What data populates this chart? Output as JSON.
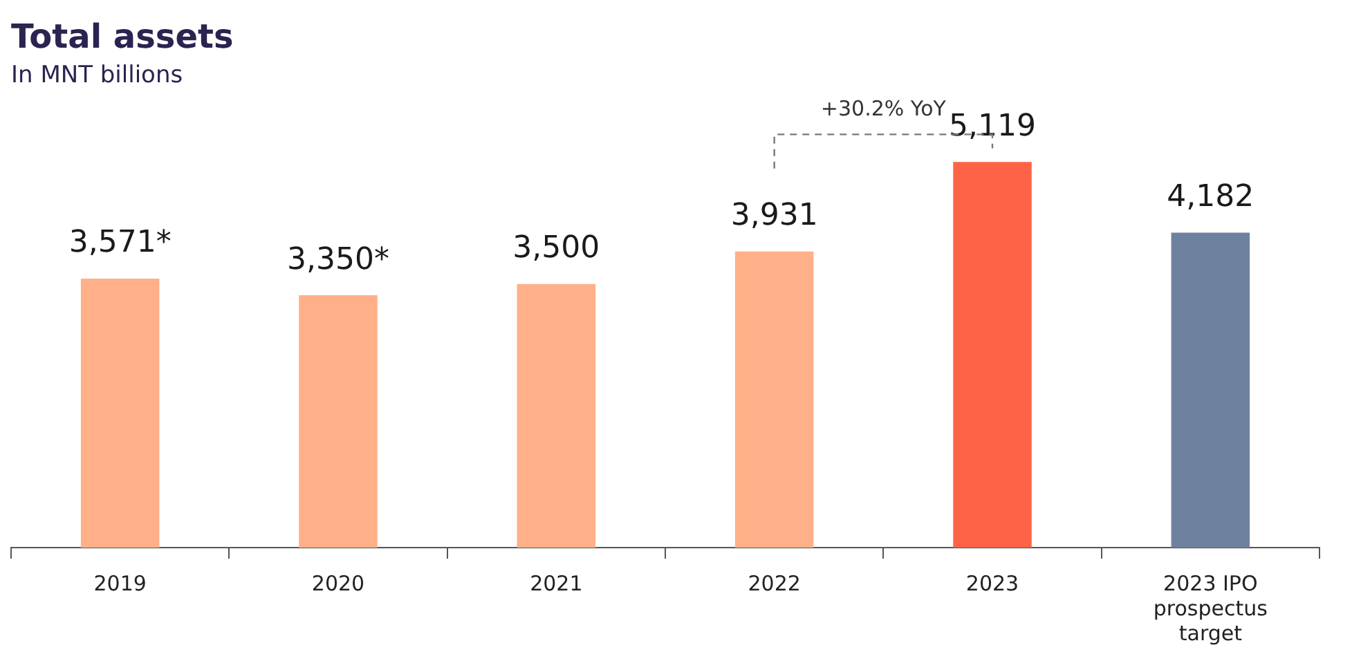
{
  "chart_data": {
    "type": "bar",
    "title": "Total assets",
    "subtitle": "In MNT billions",
    "categories": [
      "2019",
      "2020",
      "2021",
      "2022",
      "2023",
      "2023 IPO prospectus target"
    ],
    "values": [
      3571,
      3350,
      3500,
      3931,
      5119,
      4182
    ],
    "colors": [
      "#ffb088",
      "#ffb088",
      "#ffb088",
      "#ffb088",
      "#ff6347",
      "#6e82a0"
    ],
    "value_labels": [
      "3,571*",
      "3,350*",
      "3,500",
      "3,931",
      "5,119",
      "4,182"
    ],
    "tick_labels": "x",
    "grid": false,
    "legend": false,
    "annotations": [
      "+30.2% YoY"
    ]
  }
}
